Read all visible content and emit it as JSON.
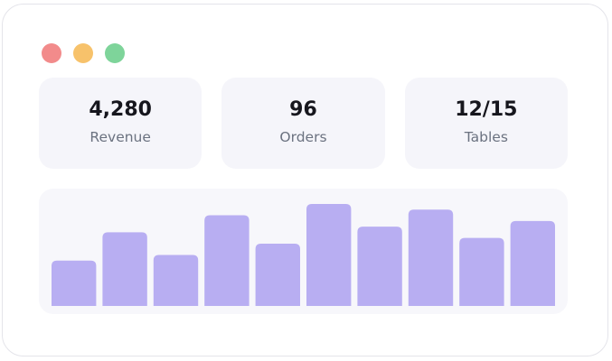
{
  "window": {
    "controls": [
      {
        "name": "close",
        "color": "#f28b8b"
      },
      {
        "name": "minimize",
        "color": "#f7c26b"
      },
      {
        "name": "zoom",
        "color": "#7ed49a"
      }
    ]
  },
  "stats": [
    {
      "value": "4,280",
      "label": "Revenue"
    },
    {
      "value": "96",
      "label": "Orders"
    },
    {
      "value": "12/15",
      "label": "Tables"
    }
  ],
  "colors": {
    "accent": "#b8aef2",
    "card_bg": "#f5f5fa"
  },
  "chart_data": {
    "type": "bar",
    "values": [
      4,
      6.5,
      4.5,
      8,
      5.5,
      9,
      7,
      8.5,
      6,
      7.5
    ],
    "ylim": [
      0,
      9
    ],
    "grid": false,
    "title": "",
    "xlabel": "",
    "ylabel": ""
  }
}
